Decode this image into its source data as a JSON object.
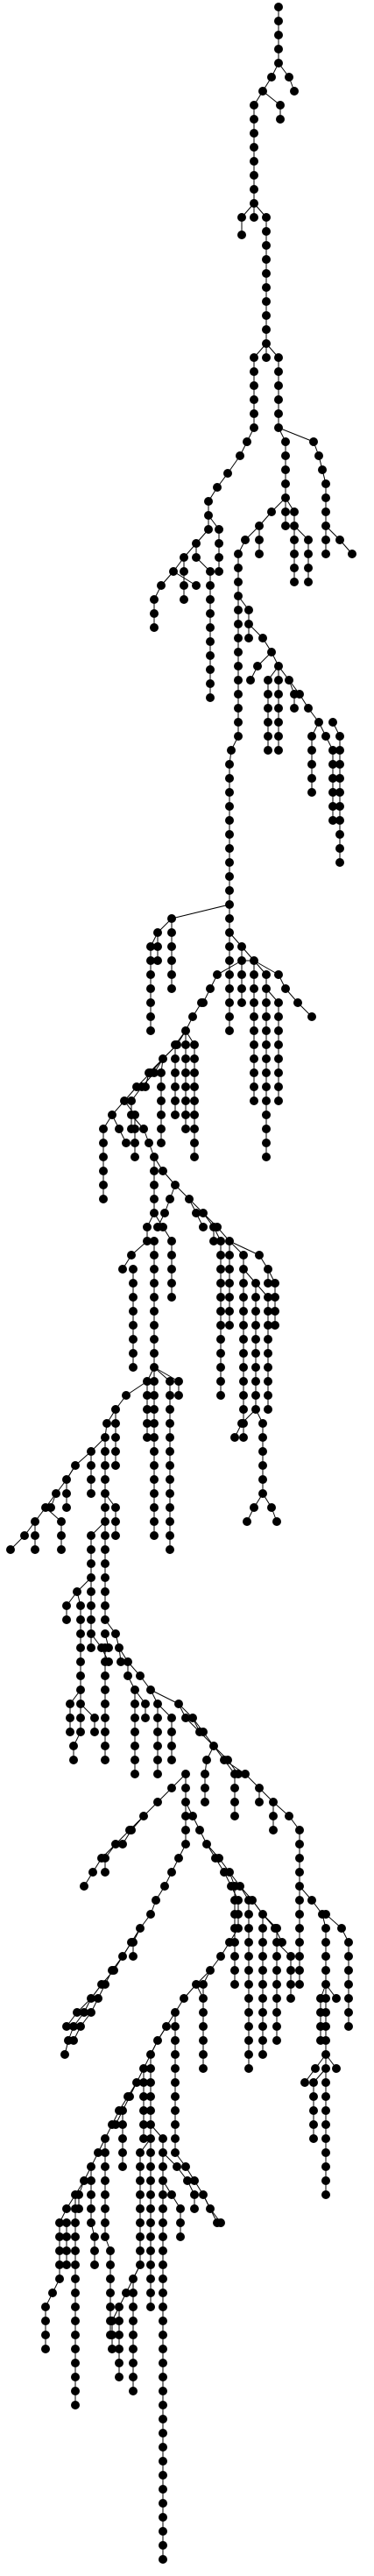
{
  "diagram": {
    "type": "tree",
    "background": "#ffffff",
    "line_color": "#000000",
    "node_color": "#000000",
    "labels": []
  }
}
